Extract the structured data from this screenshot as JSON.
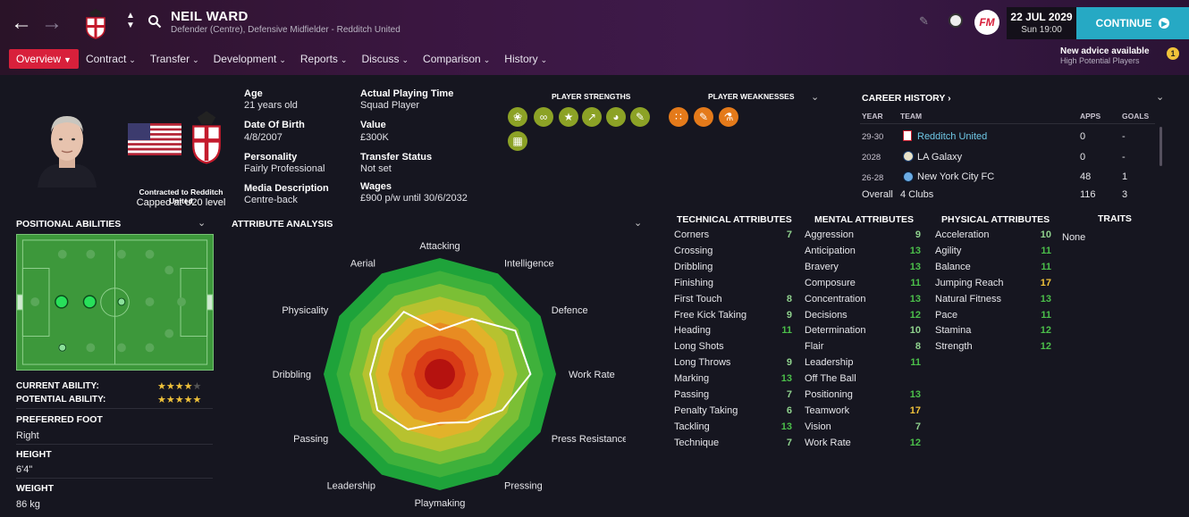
{
  "header": {
    "player_name": "NEIL WARD",
    "player_subtitle": "Defender (Centre), Defensive Midfielder - Redditch United",
    "date_line1": "22 JUL 2029",
    "date_line2": "Sun 19:00",
    "continue_label": "CONTINUE",
    "fm_logo": "FM",
    "advice_title": "New advice available",
    "advice_sub": "High Potential Players"
  },
  "tabs": [
    {
      "label": "Overview"
    },
    {
      "label": "Contract"
    },
    {
      "label": "Transfer"
    },
    {
      "label": "Development"
    },
    {
      "label": "Reports"
    },
    {
      "label": "Discuss"
    },
    {
      "label": "Comparison"
    },
    {
      "label": "History"
    }
  ],
  "profile": {
    "contracted_to": "Contracted to Redditch United",
    "capped": "Capped at U20 level",
    "age_label": "Age",
    "age_value": "21 years old",
    "dob_label": "Date Of Birth",
    "dob_value": "4/8/2007",
    "personality_label": "Personality",
    "personality_value": "Fairly Professional",
    "media_label": "Media Description",
    "media_value": "Centre-back",
    "apt_label": "Actual Playing Time",
    "apt_value": "Squad Player",
    "value_label": "Value",
    "value_value": "£300K",
    "transfer_label": "Transfer Status",
    "transfer_value": "Not set",
    "wages_label": "Wages",
    "wages_value": "£900 p/w until 30/6/2032"
  },
  "strengths": {
    "title": "PLAYER STRENGTHS",
    "count": 7
  },
  "weaknesses": {
    "title": "PLAYER WEAKNESSES",
    "count": 3
  },
  "career": {
    "title": "CAREER HISTORY",
    "col_year": "YEAR",
    "col_team": "TEAM",
    "col_apps": "APPS",
    "col_goals": "GOALS",
    "rows": [
      {
        "year": "29-30",
        "team": "Redditch United",
        "apps": "0",
        "goals": "-"
      },
      {
        "year": "2028",
        "team": "LA Galaxy",
        "apps": "0",
        "goals": "-"
      },
      {
        "year": "26-28",
        "team": "New York City FC",
        "apps": "48",
        "goals": "1"
      }
    ],
    "overall_label": "Overall",
    "overall_team": "4 Clubs",
    "overall_apps": "116",
    "overall_goals": "3"
  },
  "positional": {
    "title": "POSITIONAL ABILITIES",
    "current_label": "CURRENT ABILITY:",
    "current_stars": 3.5,
    "potential_label": "POTENTIAL ABILITY:",
    "potential_stars": 4.5,
    "foot_label": "PREFERRED FOOT",
    "foot_value": "Right",
    "height_label": "HEIGHT",
    "height_value": "6'4\"",
    "weight_label": "WEIGHT",
    "weight_value": "86 kg"
  },
  "attribute_analysis": {
    "title": "ATTRIBUTE ANALYSIS",
    "axes": [
      "Attacking",
      "Intelligence",
      "Defence",
      "Work Rate",
      "Press Resistance",
      "Pressing",
      "Playmaking",
      "Leadership",
      "Passing",
      "Dribbling",
      "Physicality",
      "Aerial"
    ],
    "values": [
      0.38,
      0.55,
      0.75,
      0.78,
      0.62,
      0.48,
      0.42,
      0.55,
      0.62,
      0.6,
      0.6,
      0.62
    ]
  },
  "technical": {
    "title": "TECHNICAL ATTRIBUTES",
    "items": [
      {
        "name": "Corners",
        "value": "7"
      },
      {
        "name": "Crossing",
        "value": ""
      },
      {
        "name": "Dribbling",
        "value": ""
      },
      {
        "name": "Finishing",
        "value": ""
      },
      {
        "name": "First Touch",
        "value": "8"
      },
      {
        "name": "Free Kick Taking",
        "value": "9"
      },
      {
        "name": "Heading",
        "value": "11"
      },
      {
        "name": "Long Shots",
        "value": ""
      },
      {
        "name": "Long Throws",
        "value": "9"
      },
      {
        "name": "Marking",
        "value": "13"
      },
      {
        "name": "Passing",
        "value": "7"
      },
      {
        "name": "Penalty Taking",
        "value": "6"
      },
      {
        "name": "Tackling",
        "value": "13"
      },
      {
        "name": "Technique",
        "value": "7"
      }
    ]
  },
  "mental": {
    "title": "MENTAL ATTRIBUTES",
    "items": [
      {
        "name": "Aggression",
        "value": "9"
      },
      {
        "name": "Anticipation",
        "value": "13"
      },
      {
        "name": "Bravery",
        "value": "13"
      },
      {
        "name": "Composure",
        "value": "11"
      },
      {
        "name": "Concentration",
        "value": "13"
      },
      {
        "name": "Decisions",
        "value": "12"
      },
      {
        "name": "Determination",
        "value": "10"
      },
      {
        "name": "Flair",
        "value": "8"
      },
      {
        "name": "Leadership",
        "value": "11"
      },
      {
        "name": "Off The Ball",
        "value": ""
      },
      {
        "name": "Positioning",
        "value": "13"
      },
      {
        "name": "Teamwork",
        "value": "17"
      },
      {
        "name": "Vision",
        "value": "7"
      },
      {
        "name": "Work Rate",
        "value": "12"
      }
    ]
  },
  "physical": {
    "title": "PHYSICAL ATTRIBUTES",
    "items": [
      {
        "name": "Acceleration",
        "value": "10"
      },
      {
        "name": "Agility",
        "value": "11"
      },
      {
        "name": "Balance",
        "value": "11"
      },
      {
        "name": "Jumping Reach",
        "value": "17"
      },
      {
        "name": "Natural Fitness",
        "value": "13"
      },
      {
        "name": "Pace",
        "value": "11"
      },
      {
        "name": "Stamina",
        "value": "12"
      },
      {
        "name": "Strength",
        "value": "12"
      }
    ]
  },
  "traits": {
    "title": "TRAITS",
    "value": "None"
  },
  "colors": {
    "accent": "#d8203b",
    "continue": "#26a9c4",
    "green_val": "#4bbf4a",
    "yellow_val": "#f0c23a"
  }
}
